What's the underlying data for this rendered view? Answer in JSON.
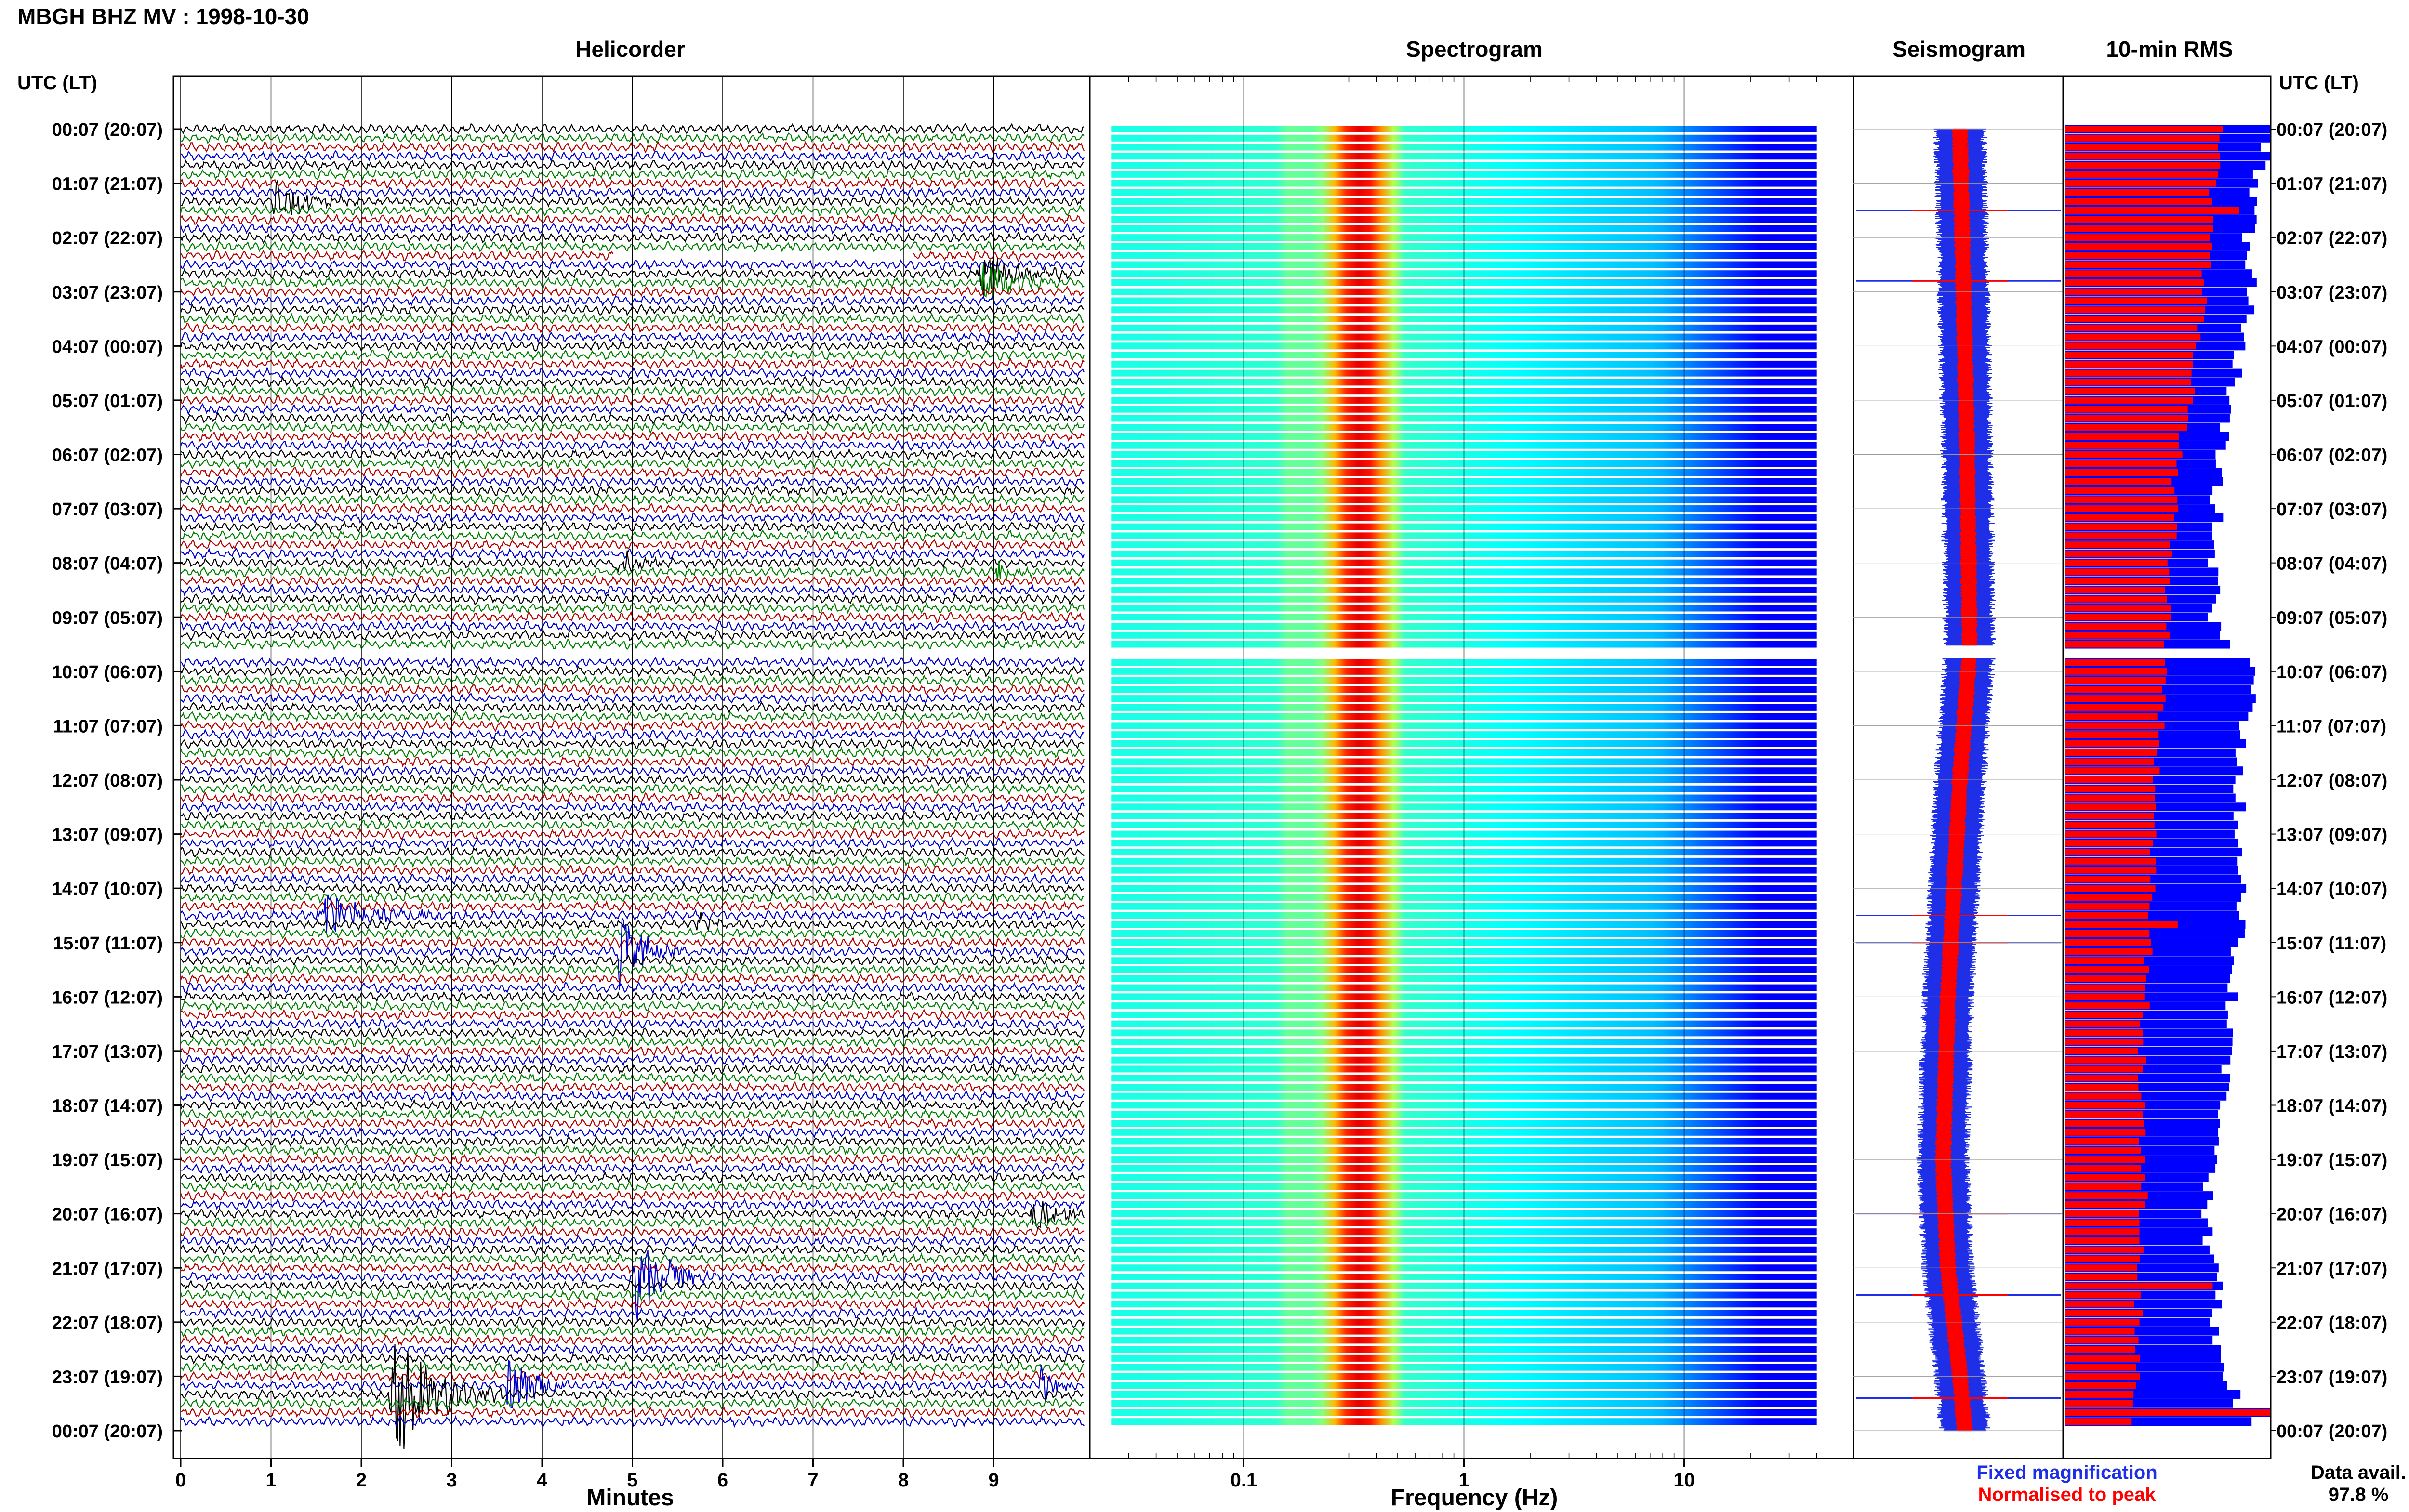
{
  "figure": {
    "title": "MBGH BHZ MV : 1998-10-30",
    "panel_titles": {
      "helicorder": "Helicorder",
      "spectrogram": "Spectrogram",
      "seismogram": "Seismogram",
      "rms": "10-min RMS"
    },
    "utc_header_left": "UTC (LT)",
    "utc_header_right": "UTC (LT)",
    "legend": {
      "fixed": "Fixed magnification",
      "fixed_color": "#1f2fe8",
      "normalised": "Normalised to peak",
      "normalised_color": "#ff0000"
    },
    "data_avail_label": "Data avail.",
    "data_avail_value": "97.8 %",
    "colors": {
      "trace_cycle": [
        "#000000",
        "#008000",
        "#b30000",
        "#0000cc"
      ],
      "rms_blue": "#0000ff",
      "rms_red": "#ff0000"
    }
  },
  "chart_data": [
    {
      "type": "line",
      "panel": "Helicorder",
      "title": "Helicorder",
      "xlabel": "Minutes",
      "xlim": [
        0,
        10
      ],
      "x_ticks": [
        "0",
        "1",
        "2",
        "3",
        "4",
        "5",
        "6",
        "7",
        "8",
        "9"
      ],
      "row_count": 144,
      "row_interval_min": 10,
      "time_labels": [
        "00:07 (20:07)",
        "01:07 (21:07)",
        "02:07 (22:07)",
        "03:07 (23:07)",
        "04:07 (00:07)",
        "05:07 (01:07)",
        "06:07 (02:07)",
        "07:07 (03:07)",
        "08:07 (04:07)",
        "09:07 (05:07)",
        "10:07 (06:07)",
        "11:07 (07:07)",
        "12:07 (08:07)",
        "13:07 (09:07)",
        "14:07 (10:07)",
        "15:07 (11:07)",
        "16:07 (12:07)",
        "17:07 (13:07)",
        "18:07 (14:07)",
        "19:07 (15:07)",
        "20:07 (16:07)",
        "21:07 (17:07)",
        "22:07 (18:07)",
        "23:07 (19:07)",
        "00:07 (20:07)"
      ],
      "gaps": [
        {
          "hour": 9.6,
          "from_min": 0,
          "to_min": 8.1
        },
        {
          "hour": 9.7,
          "from_min": 8.1,
          "to_min": 10
        },
        {
          "hour": 2.3,
          "from_min": 4.8,
          "to_min": 8.1
        }
      ],
      "events": [
        {
          "hour": 1.3,
          "minute": 1.0,
          "duration_min": 0.7,
          "amplitude": 2.5
        },
        {
          "hour": 2.75,
          "minute": 8.8,
          "duration_min": 0.8,
          "amplitude": 3.0
        },
        {
          "hour": 8.0,
          "minute": 4.8,
          "duration_min": 0.6,
          "amplitude": 1.5
        },
        {
          "hour": 8.1,
          "minute": 9.0,
          "duration_min": 0.4,
          "amplitude": 1.5
        },
        {
          "hour": 14.45,
          "minute": 1.5,
          "duration_min": 1.2,
          "amplitude": 2.5
        },
        {
          "hour": 14.6,
          "minute": 5.7,
          "duration_min": 0.3,
          "amplitude": 2.0
        },
        {
          "hour": 15.1,
          "minute": 4.8,
          "duration_min": 0.6,
          "amplitude": 5.0
        },
        {
          "hour": 20.0,
          "minute": 9.4,
          "duration_min": 0.6,
          "amplitude": 2.5
        },
        {
          "hour": 21.2,
          "minute": 5.0,
          "duration_min": 0.7,
          "amplitude": 6.0
        },
        {
          "hour": 23.1,
          "minute": 3.6,
          "duration_min": 0.5,
          "amplitude": 5.0
        },
        {
          "hour": 23.3,
          "minute": 2.3,
          "duration_min": 0.9,
          "amplitude": 9.0
        },
        {
          "hour": 23.15,
          "minute": 9.5,
          "duration_min": 0.3,
          "amplitude": 3.0
        }
      ]
    },
    {
      "type": "heatmap",
      "panel": "Spectrogram",
      "title": "Spectrogram",
      "xlabel": "Frequency (Hz)",
      "x_scale": "log",
      "xlim": [
        0.02,
        50
      ],
      "x_ticks": [
        "0.1",
        "1",
        "10"
      ],
      "peak_band_hz": [
        0.25,
        0.45
      ],
      "high_energy_band_hz": [
        0.15,
        0.6
      ],
      "low_energy_above_hz": 8
    },
    {
      "type": "line",
      "panel": "Seismogram",
      "title": "Seismogram",
      "series": [
        {
          "name": "Fixed magnification",
          "color": "#1f2fe8"
        },
        {
          "name": "Normalised to peak",
          "color": "#ff0000"
        }
      ],
      "drift_x": [
        0,
        6,
        9.6,
        12,
        16,
        19,
        21,
        23,
        24
      ],
      "drift_y": [
        0.0,
        0.3,
        0.4,
        0.0,
        -0.5,
        -0.7,
        -0.5,
        0.0,
        0.2
      ],
      "spikes_hour": [
        1.5,
        2.8,
        14.5,
        15.0,
        20.0,
        21.5,
        23.4
      ]
    },
    {
      "type": "bar",
      "panel": "10-min RMS",
      "title": "10-min RMS",
      "orientation": "horizontal",
      "series": [
        {
          "name": "Fixed magnification",
          "color": "#0000ff",
          "hours": [
            0,
            2,
            3,
            6,
            9,
            10,
            12,
            14,
            17,
            20,
            23,
            24
          ],
          "values": [
            1.0,
            0.88,
            0.9,
            0.75,
            0.72,
            0.93,
            0.84,
            0.86,
            0.78,
            0.7,
            0.75,
            0.95
          ]
        },
        {
          "name": "Normalised to peak",
          "color": "#ff0000",
          "hours": [
            0,
            2,
            4,
            6,
            9,
            10,
            14,
            17,
            20,
            23,
            24
          ],
          "values": [
            0.75,
            0.7,
            0.65,
            0.55,
            0.5,
            0.48,
            0.42,
            0.38,
            0.38,
            0.35,
            0.35
          ]
        }
      ],
      "spikes": [
        {
          "hour": 1.5,
          "value": 0.85
        },
        {
          "hour": 14.6,
          "value": 0.55
        },
        {
          "hour": 21.3,
          "value": 0.72
        },
        {
          "hour": 23.7,
          "value": 1.0
        }
      ]
    }
  ]
}
